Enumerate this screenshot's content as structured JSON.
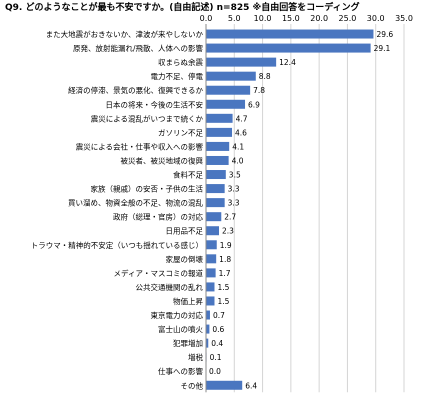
{
  "chart_data": {
    "type": "bar",
    "orientation": "horizontal",
    "title": "Q9. どのようなことが最も不安ですか。(自由記述) n=825 ※自由回答をコーディング",
    "xlim": [
      0,
      35
    ],
    "xticks": [
      "0.0",
      "5.0",
      "10.0",
      "15.0",
      "20.0",
      "25.0",
      "30.0",
      "35.0"
    ],
    "grid": true,
    "bar_color": "#4a76c0",
    "categories": [
      "また大地震がおきないか、津波が来やしないか",
      "原発、放射能漏れ/飛散、人体への影響",
      "収まらぬ余震",
      "電力不足、停電",
      "経済の停滞、景気の悪化、復興できるか",
      "日本の将来・今後の生活不安",
      "震災による混乱がいつまで続くか",
      "ガソリン不足",
      "震災による会社・仕事や収入への影響",
      "被災者、被災地域の復興",
      "食料不足",
      "家族（親戚）の安否・子供の生活",
      "買い溜め、物資全般の不足、物流の混乱",
      "政府（総理・官房）の対応",
      "日用品不足",
      "トラウマ・精神的不安定（いつも揺れている感じ）",
      "家屋の倒壊",
      "メディア・マスコミの報道",
      "公共交通機関の乱れ",
      "物価上昇",
      "東京電力の対応",
      "富士山の噴火",
      "犯罪増加",
      "増税",
      "仕事への影響",
      "その他"
    ],
    "values": [
      29.6,
      29.1,
      12.4,
      8.8,
      7.8,
      6.9,
      4.7,
      4.6,
      4.1,
      4.0,
      3.5,
      3.3,
      3.3,
      2.7,
      2.3,
      1.9,
      1.8,
      1.7,
      1.5,
      1.5,
      0.7,
      0.6,
      0.4,
      0.1,
      0.0,
      6.4
    ],
    "labels": [
      "29.6",
      "29.1",
      "12.4",
      "8.8",
      "7.8",
      "6.9",
      "4.7",
      "4.6",
      "4.1",
      "4.0",
      "3.5",
      "3.3",
      "3.3",
      "2.7",
      "2.3",
      "1.9",
      "1.8",
      "1.7",
      "1.5",
      "1.5",
      "0.7",
      "0.6",
      "0.4",
      "0.1",
      "0.0",
      "6.4"
    ]
  }
}
